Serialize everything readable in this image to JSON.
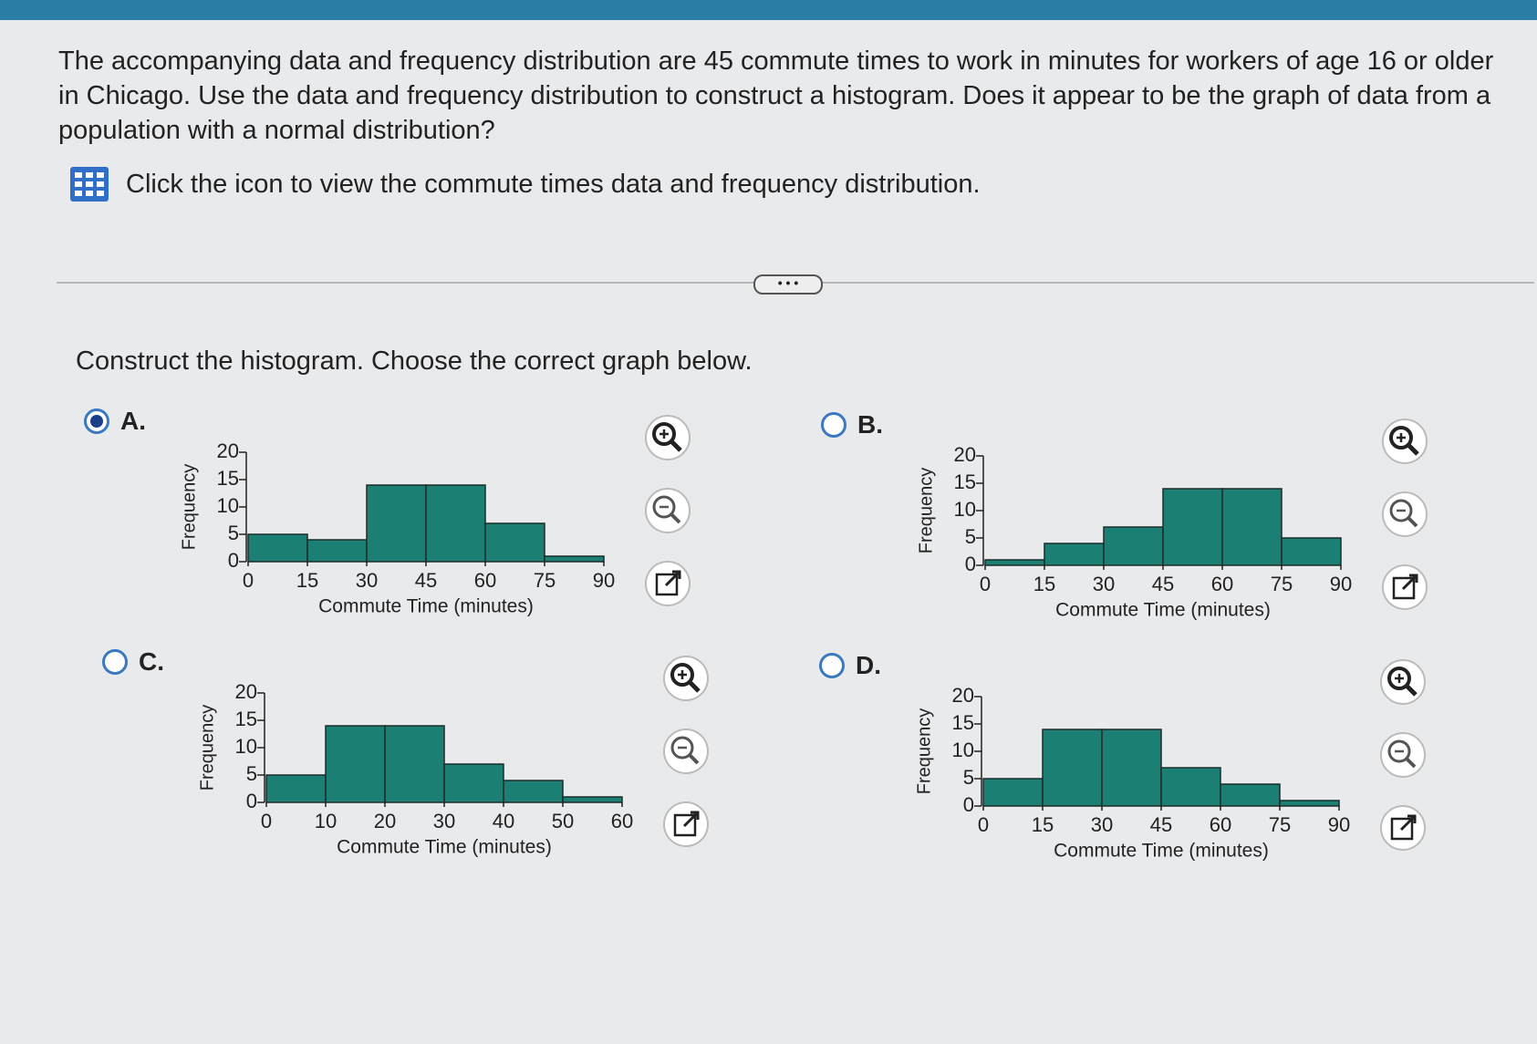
{
  "question": "The accompanying data and frequency distribution are 45 commute times to work in minutes for workers of age 16 or older in Chicago. Use the data and frequency distribution to construct a histogram. Does it appear to be the graph of data from a population with a normal distribution?",
  "icon_text": "Click the icon to view the commute times data and frequency distribution.",
  "prompt": "Construct the histogram. Choose the correct graph below.",
  "options": [
    {
      "label": "A.",
      "selected": true
    },
    {
      "label": "B.",
      "selected": false
    },
    {
      "label": "C.",
      "selected": false
    },
    {
      "label": "D.",
      "selected": false
    }
  ],
  "chart_data": [
    {
      "type": "histogram",
      "x_label": "Commute Time (minutes)",
      "y_label": "Frequency",
      "color": "#1b7f73",
      "bins": [
        0,
        15,
        30,
        45,
        60,
        75,
        90
      ],
      "values": [
        5,
        4,
        14,
        14,
        7,
        1
      ],
      "xlim": [
        0,
        90
      ],
      "xticks": [
        0,
        15,
        30,
        45,
        60,
        75,
        90
      ],
      "ylim": [
        0,
        20
      ],
      "yticks": [
        0,
        5,
        10,
        15,
        20
      ]
    },
    {
      "type": "histogram",
      "x_label": "Commute Time (minutes)",
      "y_label": "Frequency",
      "color": "#1b7f73",
      "bins": [
        0,
        15,
        30,
        45,
        60,
        75,
        90
      ],
      "values": [
        1,
        4,
        7,
        14,
        14,
        5
      ],
      "xlim": [
        0,
        90
      ],
      "xticks": [
        0,
        15,
        30,
        45,
        60,
        75,
        90
      ],
      "ylim": [
        0,
        20
      ],
      "yticks": [
        0,
        5,
        10,
        15,
        20
      ]
    },
    {
      "type": "histogram",
      "x_label": "Commute Time (minutes)",
      "y_label": "Frequency",
      "color": "#1b7f73",
      "bins": [
        0,
        10,
        20,
        30,
        40,
        50,
        60
      ],
      "values": [
        5,
        14,
        14,
        7,
        4,
        1
      ],
      "xlim": [
        0,
        60
      ],
      "xticks": [
        0,
        10,
        20,
        30,
        40,
        50,
        60
      ],
      "ylim": [
        0,
        20
      ],
      "yticks": [
        0,
        5,
        10,
        15,
        20
      ]
    },
    {
      "type": "histogram",
      "x_label": "Commute Time (minutes)",
      "y_label": "Frequency",
      "color": "#1b7f73",
      "bins": [
        0,
        15,
        30,
        45,
        60,
        75,
        90
      ],
      "values": [
        5,
        14,
        14,
        7,
        4,
        1
      ],
      "xlim": [
        0,
        90
      ],
      "xticks": [
        0,
        15,
        30,
        45,
        60,
        75,
        90
      ],
      "ylim": [
        0,
        20
      ],
      "yticks": [
        0,
        5,
        10,
        15,
        20
      ]
    }
  ]
}
